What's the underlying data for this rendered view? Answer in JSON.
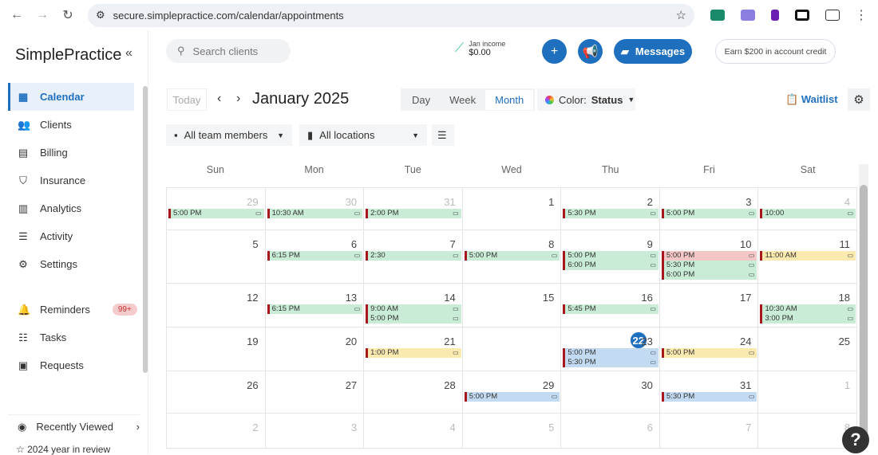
{
  "browser": {
    "url": "secure.simplepractice.com/calendar/appointments"
  },
  "sidebar": {
    "logo": "SimplePractice",
    "items": [
      {
        "label": "Calendar",
        "icon": "calendar-icon",
        "active": true
      },
      {
        "label": "Clients",
        "icon": "users-icon"
      },
      {
        "label": "Billing",
        "icon": "billing-icon"
      },
      {
        "label": "Insurance",
        "icon": "shield-icon"
      },
      {
        "label": "Analytics",
        "icon": "chart-icon"
      },
      {
        "label": "Activity",
        "icon": "list-icon"
      },
      {
        "label": "Settings",
        "icon": "gear-icon"
      }
    ],
    "items2": [
      {
        "label": "Reminders",
        "icon": "bell-icon",
        "badge": "99+"
      },
      {
        "label": "Tasks",
        "icon": "tasks-icon"
      },
      {
        "label": "Requests",
        "icon": "requests-icon"
      }
    ],
    "recent": "Recently Viewed",
    "review": "2024 year in review"
  },
  "header": {
    "search_placeholder": "Search clients",
    "income_label": "Jan income",
    "income_value": "$0.00",
    "messages": "Messages",
    "earn": "Earn $200 in account credit"
  },
  "toolbar": {
    "today": "Today",
    "month": "January 2025",
    "views": [
      "Day",
      "Week",
      "Month"
    ],
    "selected_view": "Month",
    "color_label": "Color:",
    "color_value": "Status",
    "waitlist": "Waitlist",
    "team": "All team members",
    "locations": "All locations"
  },
  "colors": {
    "green": "#c8ecd6",
    "red": "#f4c6c6",
    "yellow": "#fbeab0",
    "blue": "#c3dbf2",
    "accent": "#1f6fbf"
  },
  "days": [
    "Sun",
    "Mon",
    "Tue",
    "Wed",
    "Thu",
    "Fri",
    "Sat"
  ],
  "weeks": [
    [
      {
        "d": "29",
        "m": true,
        "ev": [
          [
            "5:00 PM",
            "green"
          ]
        ]
      },
      {
        "d": "30",
        "m": true,
        "ev": [
          [
            "10:30 AM",
            "green"
          ]
        ]
      },
      {
        "d": "31",
        "m": true,
        "ev": [
          [
            "2:00 PM",
            "green"
          ]
        ]
      },
      {
        "d": "1",
        "ev": []
      },
      {
        "d": "2",
        "ev": [
          [
            "5:30 PM",
            "green"
          ]
        ]
      },
      {
        "d": "3",
        "ev": [
          [
            "5:00 PM",
            "green"
          ]
        ]
      },
      {
        "d": "4",
        "m": true,
        "ev": [
          [
            "10:00",
            "green"
          ]
        ]
      }
    ],
    [
      {
        "d": "5",
        "ev": []
      },
      {
        "d": "6",
        "ev": [
          [
            "6:15 PM",
            "green"
          ]
        ]
      },
      {
        "d": "7",
        "ev": [
          [
            "2:30",
            "green"
          ]
        ]
      },
      {
        "d": "8",
        "ev": [
          [
            "5:00 PM",
            "green"
          ]
        ]
      },
      {
        "d": "9",
        "ev": [
          [
            "5:00 PM",
            "green"
          ],
          [
            "6:00 PM",
            "green"
          ]
        ]
      },
      {
        "d": "10",
        "ev": [
          [
            "5:00 PM",
            "red"
          ],
          [
            "5:30 PM",
            "green"
          ],
          [
            "6:00 PM",
            "green"
          ]
        ]
      },
      {
        "d": "11",
        "ev": [
          [
            "11:00 AM",
            "yellow"
          ]
        ]
      }
    ],
    [
      {
        "d": "12",
        "ev": []
      },
      {
        "d": "13",
        "ev": [
          [
            "6:15 PM",
            "green"
          ]
        ]
      },
      {
        "d": "14",
        "ev": [
          [
            "9:00 AM",
            "green"
          ],
          [
            "5:00 PM",
            "green"
          ]
        ]
      },
      {
        "d": "15",
        "ev": []
      },
      {
        "d": "16",
        "ev": [
          [
            "5:45 PM",
            "green"
          ]
        ]
      },
      {
        "d": "17",
        "ev": []
      },
      {
        "d": "18",
        "ev": [
          [
            "10:30 AM",
            "green"
          ],
          [
            "3:00 PM",
            "green"
          ]
        ]
      }
    ],
    [
      {
        "d": "19",
        "ev": []
      },
      {
        "d": "20",
        "ev": []
      },
      {
        "d": "21",
        "ev": [
          [
            "1:00 PM",
            "yellow"
          ]
        ]
      },
      {
        "d": "22",
        "today": true,
        "ev": []
      },
      {
        "d": "23",
        "ev": [
          [
            "5:00 PM",
            "blue"
          ],
          [
            "5:30 PM",
            "blue"
          ]
        ]
      },
      {
        "d": "24",
        "ev": [
          [
            "5:00 PM",
            "yellow"
          ]
        ]
      },
      {
        "d": "25",
        "ev": []
      }
    ],
    [
      {
        "d": "26",
        "ev": []
      },
      {
        "d": "27",
        "ev": []
      },
      {
        "d": "28",
        "ev": []
      },
      {
        "d": "29",
        "ev": [
          [
            "5:00 PM",
            "blue"
          ]
        ]
      },
      {
        "d": "30",
        "ev": []
      },
      {
        "d": "31",
        "ev": [
          [
            "5:30 PM",
            "blue"
          ]
        ]
      },
      {
        "d": "1",
        "m": true,
        "ev": []
      }
    ],
    [
      {
        "d": "2",
        "m": true,
        "ev": []
      },
      {
        "d": "3",
        "m": true,
        "ev": []
      },
      {
        "d": "4",
        "m": true,
        "ev": []
      },
      {
        "d": "5",
        "m": true,
        "ev": []
      },
      {
        "d": "6",
        "m": true,
        "ev": []
      },
      {
        "d": "7",
        "m": true,
        "ev": []
      },
      {
        "d": "8",
        "m": true,
        "ev": []
      }
    ]
  ]
}
